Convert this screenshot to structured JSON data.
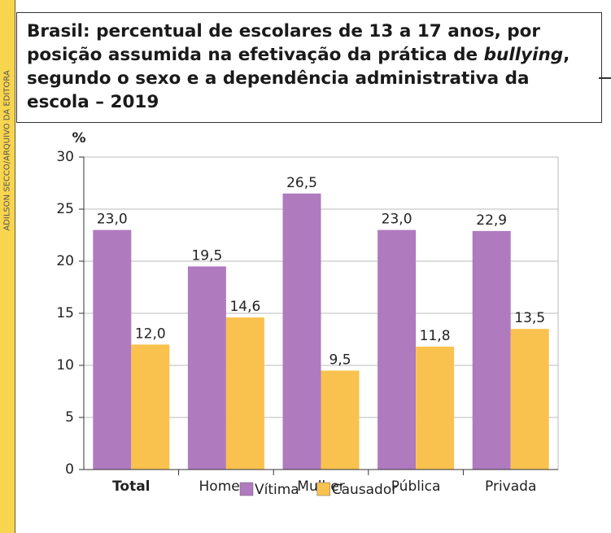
{
  "chart_data": {
    "type": "bar",
    "title": [
      "Brasil: percentual de escolares de 13 a 17 anos, por posição assumida na efetivação da prática de ",
      "bullying",
      ", segundo o sexo e a dependência administrativa da escola – 2019"
    ],
    "credit": "ADILSON SECCO/ARQUIVO DA EDITORA",
    "y_label": "%",
    "categories": [
      "Total",
      "Homem",
      "Mulher",
      "Pública",
      "Privada"
    ],
    "series": [
      {
        "name": "Vítima",
        "color": "#b07abf",
        "values": [
          23.0,
          19.5,
          26.5,
          23.0,
          22.9
        ],
        "value_labels": [
          "23,0",
          "19,5",
          "26,5",
          "23,0",
          "22,9"
        ]
      },
      {
        "name": "Causador",
        "color": "#f9c24f",
        "values": [
          12.0,
          14.6,
          9.5,
          11.8,
          13.5
        ],
        "value_labels": [
          "12,0",
          "14,6",
          "9,5",
          "11,8",
          "13,5"
        ]
      }
    ],
    "ylim": [
      0,
      30
    ],
    "yticks": [
      0,
      5,
      10,
      15,
      20,
      25,
      30
    ],
    "grid": true
  }
}
